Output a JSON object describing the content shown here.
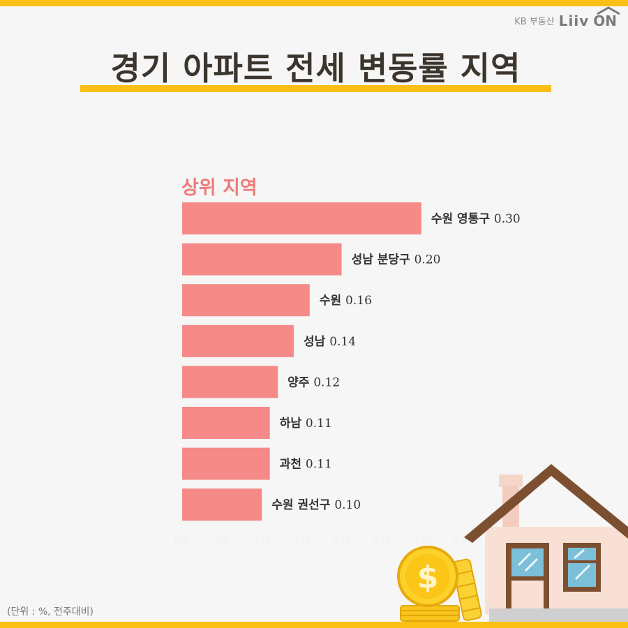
{
  "brand": {
    "kb": "KB 부동산",
    "liiv": "Liiv",
    "on": "ON"
  },
  "title": "경기 아파트 전세 변동률 지역",
  "footnote": "(단위 : %, 전주대비)",
  "colors": {
    "accent": "#fcbf15",
    "bar": "#f58a88",
    "section": "#f07b78",
    "title": "#3b352d"
  },
  "chart_data": {
    "type": "bar",
    "orientation": "horizontal",
    "title": "상위 지역",
    "categories": [
      "수원 영통구",
      "성남 분당구",
      "수원",
      "성남",
      "양주",
      "하남",
      "과천",
      "수원 권선구"
    ],
    "values": [
      0.3,
      0.2,
      0.16,
      0.14,
      0.12,
      0.11,
      0.11,
      0.1
    ],
    "value_labels": [
      "0.30",
      "0.20",
      "0.16",
      "0.14",
      "0.12",
      "0.11",
      "0.11",
      "0.10"
    ],
    "xlim": [
      0,
      0.35
    ],
    "xticks": [
      "0.00",
      "0.05",
      "0.10",
      "0.15",
      "0.20",
      "0.25",
      "0.30",
      "0.35"
    ],
    "grid": false,
    "legend": "none"
  }
}
